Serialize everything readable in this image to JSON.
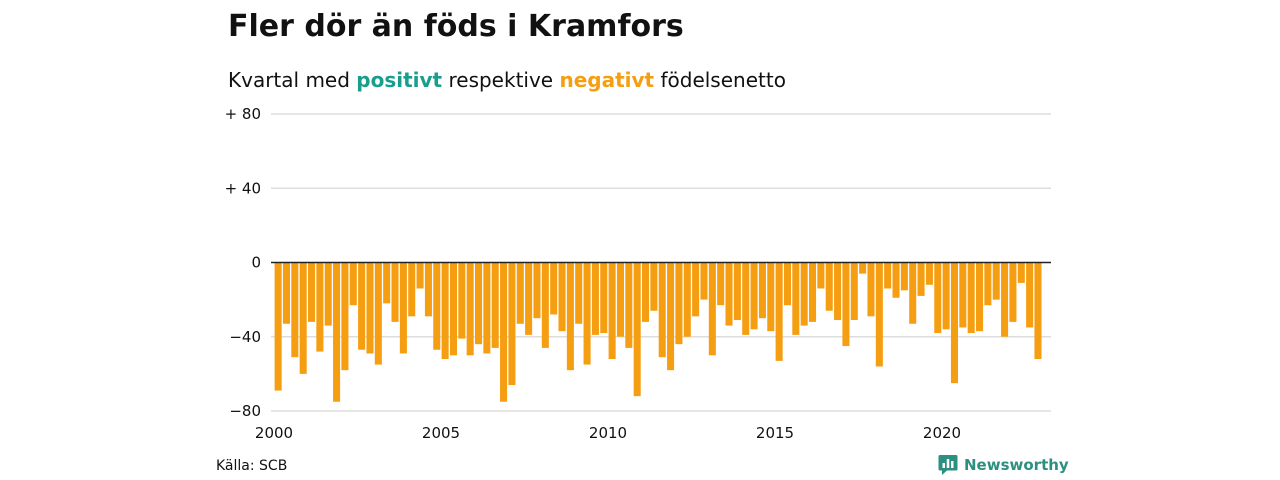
{
  "title": "Fler dör än föds i Kramfors",
  "subtitle": {
    "prefix": "Kvartal med ",
    "positive_word": "positivt",
    "middle": " respektive ",
    "negative_word": "negativt",
    "suffix": " födelsenetto"
  },
  "source": "Källa: SCB",
  "brand": "Newsworthy",
  "colors": {
    "positive": "#1a9e8c",
    "negative": "#f59e12",
    "grid": "#dddddd",
    "zero_line": "#222222",
    "brand": "#2c8f80"
  },
  "chart_data": {
    "type": "bar",
    "ylim": [
      -80,
      80
    ],
    "yticks": [
      {
        "value": 80,
        "label": "+ 80"
      },
      {
        "value": 40,
        "label": "+ 40"
      },
      {
        "value": 0,
        "label": "0"
      },
      {
        "value": -40,
        "label": "−40"
      },
      {
        "value": -80,
        "label": "−80"
      }
    ],
    "xticks": [
      "2000",
      "2005",
      "2010",
      "2015",
      "2020"
    ],
    "grid": true,
    "first_period": "2000 Q1",
    "values": [
      -69,
      -33,
      -51,
      -60,
      -32,
      -48,
      -34,
      -75,
      -58,
      -23,
      -47,
      -49,
      -55,
      -22,
      -32,
      -49,
      -29,
      -14,
      -29,
      -47,
      -52,
      -50,
      -41,
      -50,
      -44,
      -49,
      -46,
      -75,
      -66,
      -33,
      -39,
      -30,
      -46,
      -28,
      -37,
      -58,
      -33,
      -55,
      -39,
      -38,
      -52,
      -40,
      -46,
      -72,
      -32,
      -26,
      -51,
      -58,
      -44,
      -40,
      -29,
      -20,
      -50,
      -23,
      -34,
      -31,
      -39,
      -36,
      -30,
      -37,
      -53,
      -23,
      -39,
      -34,
      -32,
      -14,
      -26,
      -31,
      -45,
      -31,
      -6,
      -29,
      -56,
      -14,
      -19,
      -15,
      -33,
      -18,
      -12,
      -38,
      -36,
      -65,
      -35,
      -38,
      -37,
      -23,
      -20,
      -40,
      -32,
      -11,
      -35,
      -52
    ]
  }
}
